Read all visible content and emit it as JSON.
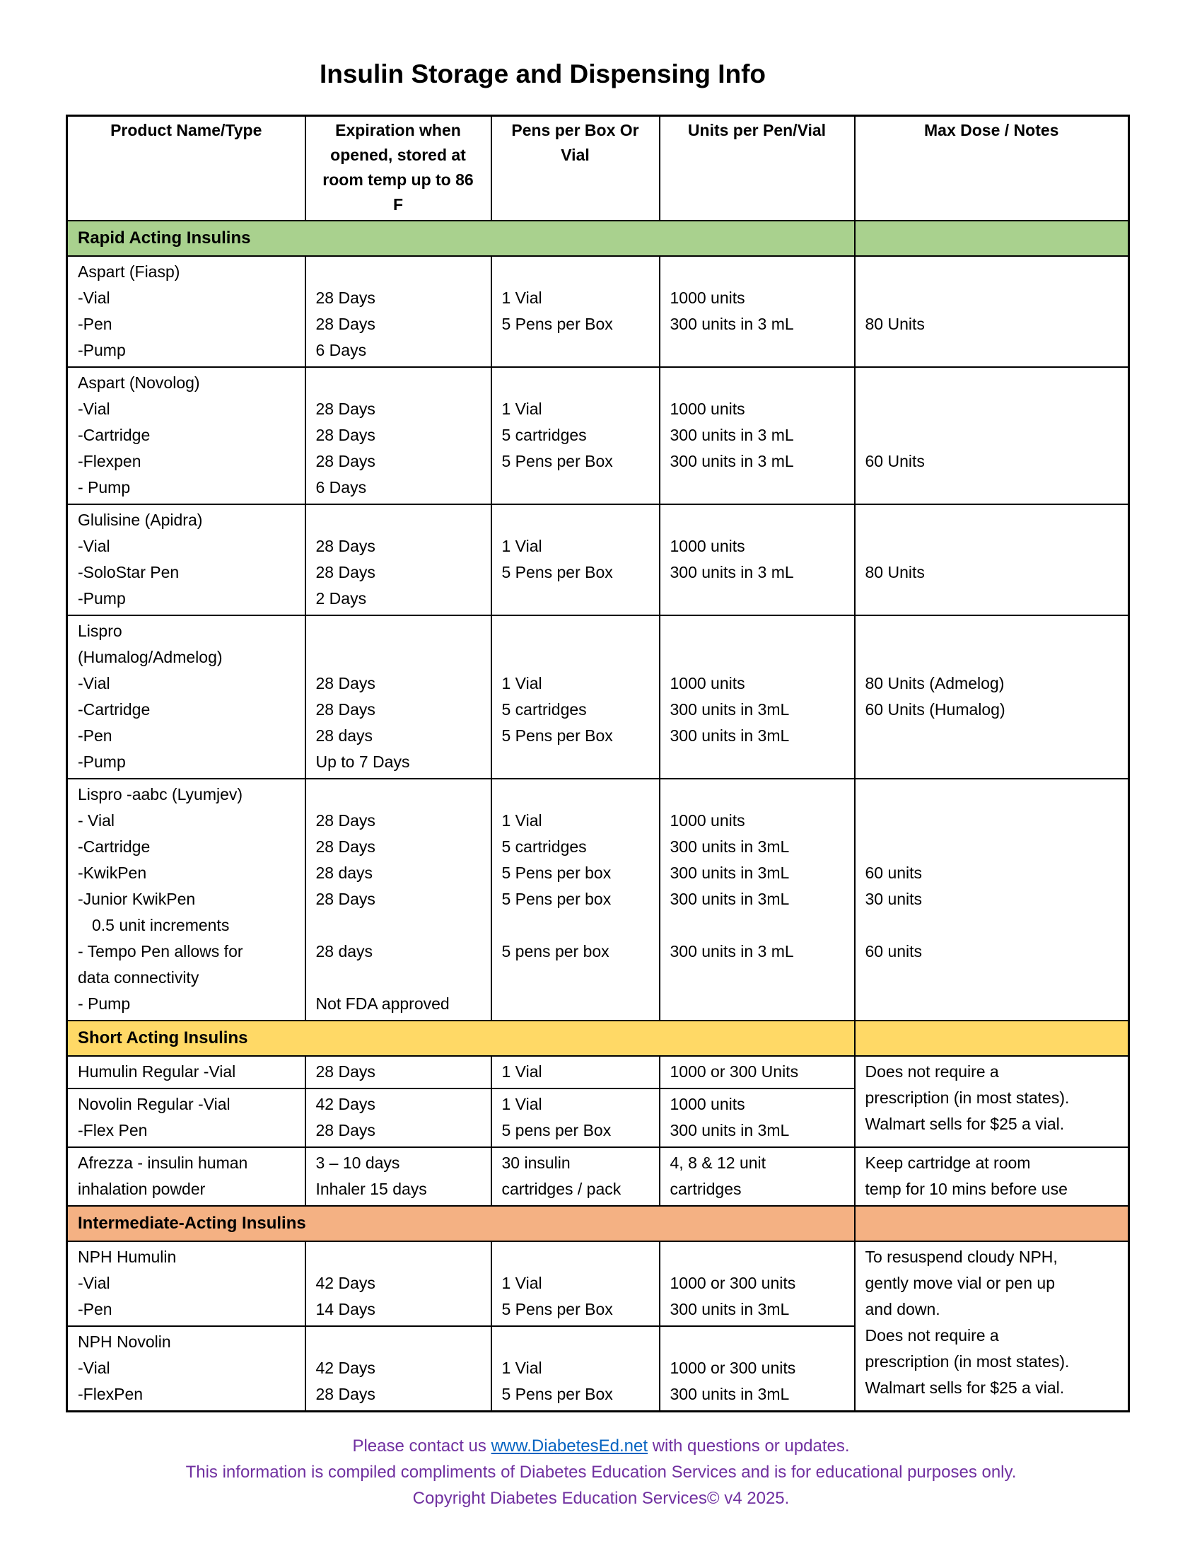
{
  "title": "Insulin Storage and Dispensing Info",
  "table": {
    "header": [
      "Product Name/Type",
      "Expiration when opened, stored at room temp up to 86 F",
      "Pens per Box Or Vial",
      "Units per Pen/Vial",
      "Max Dose / Notes"
    ],
    "sections": [
      {
        "heading": "Rapid Acting Insulins",
        "color": "#a9d18e",
        "rows": [
          [
            [
              "Aspart (Fiasp)",
              "-Vial",
              "-Pen",
              "-Pump"
            ],
            [
              "28 Days",
              "28 Days",
              "6 Days"
            ],
            [
              "1 Vial",
              "5 Pens per Box"
            ],
            [
              "1000 units",
              "300 units in 3 mL"
            ],
            [
              "80 Units"
            ]
          ],
          [
            [
              "Aspart (Novolog)",
              "-Vial",
              "-Cartridge",
              "-Flexpen",
              "- Pump"
            ],
            [
              "28 Days",
              "28 Days",
              "28 Days",
              "6 Days"
            ],
            [
              "1 Vial",
              "5 cartridges",
              "5 Pens per Box"
            ],
            [
              "1000 units",
              "300 units in 3 mL",
              "300 units in 3 mL"
            ],
            [
              "60 Units"
            ]
          ],
          [
            [
              "Glulisine (Apidra)",
              "-Vial",
              "-SoloStar Pen",
              "-Pump"
            ],
            [
              "28 Days",
              "28 Days",
              "2 Days"
            ],
            [
              "1 Vial",
              "5 Pens per Box"
            ],
            [
              "1000 units",
              "300 units in 3 mL"
            ],
            [
              "80 Units"
            ]
          ],
          [
            [
              "Lispro",
              "(Humalog/Admelog)",
              "-Vial",
              "-Cartridge",
              "-Pen",
              "-Pump"
            ],
            [
              "28 Days",
              "28 Days",
              "28 days",
              "Up to 7 Days"
            ],
            [
              "1 Vial",
              "5 cartridges",
              "5 Pens per Box"
            ],
            [
              "1000 units",
              "300 units in 3mL",
              "300 units in 3mL"
            ],
            [
              "80 Units (Admelog)",
              "60 Units (Humalog)"
            ]
          ],
          [
            [
              "Lispro -aabc (Lyumjev)",
              "- Vial",
              "-Cartridge",
              "-KwikPen",
              "-Junior KwikPen",
              "0.5 unit increments",
              "- Tempo Pen allows for",
              "data connectivity",
              "- Pump"
            ],
            [
              "28 Days",
              "28 Days",
              "28 days",
              "28 Days",
              "28 days",
              "Not FDA approved"
            ],
            [
              "1 Vial",
              "5 cartridges",
              "5 Pens per box",
              "5 Pens per box",
              "5 pens per box"
            ],
            [
              "1000 units",
              "300 units in 3mL",
              "300 units in 3mL",
              "300 units in 3mL",
              "300 units in 3 mL"
            ],
            [
              "60 units",
              "30 units",
              "60 units"
            ]
          ]
        ]
      },
      {
        "heading": "Short Acting Insulins",
        "color": "#ffd966",
        "rows": [
          [
            [
              "Humulin Regular -Vial"
            ],
            [
              "28 Days"
            ],
            [
              "1 Vial"
            ],
            [
              "1000 or 300 Units"
            ],
            [
              "Does not require a",
              "prescription (in most states).",
              "Walmart sells for $25 a vial."
            ]
          ],
          [
            [
              "Novolin Regular -Vial",
              "-Flex Pen"
            ],
            [
              "42 Days",
              "28 Days"
            ],
            [
              "1 Vial",
              "5 pens per Box"
            ],
            [
              "1000 units",
              "300 units in 3mL"
            ]
          ],
          [
            [
              "Afrezza - insulin human",
              "inhalation powder"
            ],
            [
              "3 – 10 days",
              "Inhaler 15 days"
            ],
            [
              "30 insulin",
              "cartridges / pack"
            ],
            [
              "4, 8 & 12 unit",
              "cartridges"
            ],
            [
              "Keep cartridge at room",
              "temp for 10 mins before use"
            ]
          ]
        ]
      },
      {
        "heading": "Intermediate-Acting Insulins",
        "color": "#f4b183",
        "rows": [
          [
            [
              "NPH Humulin",
              "-Vial",
              "-Pen"
            ],
            [
              "42 Days",
              "14 Days"
            ],
            [
              "1 Vial",
              "5 Pens per Box"
            ],
            [
              "1000 or 300 units",
              "300 units in 3mL"
            ],
            [
              "To resuspend cloudy NPH,",
              "gently move vial or pen up",
              "and down.",
              "Does not require a",
              "prescription (in most states).",
              "Walmart sells for $25 a vial."
            ]
          ],
          [
            [
              "NPH Novolin",
              "-Vial",
              "-FlexPen"
            ],
            [
              "42 Days",
              "28 Days"
            ],
            [
              "1 Vial",
              "5 Pens per Box"
            ],
            [
              "1000 or 300 units",
              "300 units in 3mL"
            ]
          ]
        ]
      }
    ]
  },
  "footer": {
    "contact_before": "Please contact us",
    "link": "www.DiabetesEd.net",
    "contact_after": "with questions or updates.",
    "compiled": "This information is compiled compliments of Diabetes Education Services and is for educational purposes only.",
    "copyright": "Copyright Diabetes Education Services© v4 2025."
  }
}
